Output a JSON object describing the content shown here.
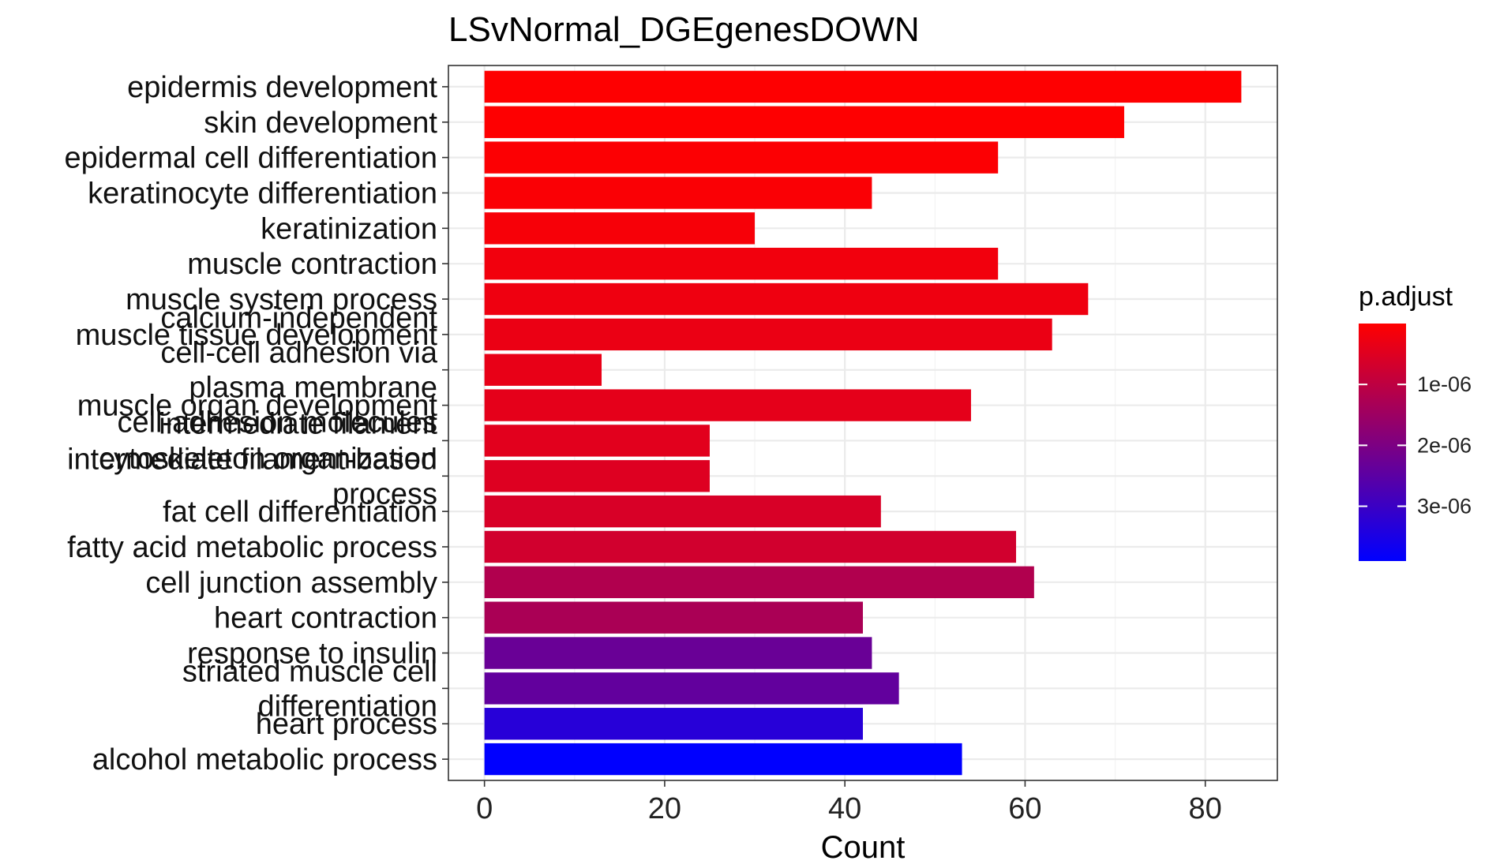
{
  "chart_data": {
    "type": "bar",
    "orientation": "horizontal",
    "title": "LSvNormal_DGEgenesDOWN",
    "xlabel": "Count",
    "ylabel": "",
    "xlim": [
      -4,
      88
    ],
    "xticks": [
      0,
      20,
      40,
      60,
      80
    ],
    "categories": [
      "epidermis development",
      "skin development",
      "epidermal cell differentiation",
      "keratinocyte differentiation",
      "keratinization",
      "muscle contraction",
      "muscle system process",
      "muscle tissue development",
      "calcium-independent cell-cell adhesion via plasma membrane cell-adhesion molecules",
      "muscle organ development",
      "intermediate filament cytoskeleton organization",
      "intermediate filament-based process",
      "fat cell differentiation",
      "fatty acid metabolic process",
      "cell junction assembly",
      "heart contraction",
      "response to insulin",
      "striated muscle cell differentiation",
      "heart process",
      "alcohol metabolic process"
    ],
    "label_lines": [
      [
        "epidermis development"
      ],
      [
        "skin development"
      ],
      [
        "epidermal cell differentiation"
      ],
      [
        "keratinocyte differentiation"
      ],
      [
        "keratinization"
      ],
      [
        "muscle contraction"
      ],
      [
        "muscle system process"
      ],
      [
        "muscle tissue development"
      ],
      [
        "calcium-independent",
        "cell-cell adhesion via",
        "plasma membrane",
        "cell-adhesion molecules"
      ],
      [
        "muscle organ development"
      ],
      [
        "intermediate filament",
        "cytoskeleton organization"
      ],
      [
        "intermediate filament-based",
        "process"
      ],
      [
        "fat cell differentiation"
      ],
      [
        "fatty acid metabolic process"
      ],
      [
        "cell junction assembly"
      ],
      [
        "heart contraction"
      ],
      [
        "response to insulin"
      ],
      [
        "striated muscle cell",
        "differentiation"
      ],
      [
        "heart process"
      ],
      [
        "alcohol metabolic process"
      ]
    ],
    "values": [
      84,
      71,
      57,
      43,
      30,
      57,
      67,
      63,
      13,
      54,
      25,
      25,
      44,
      59,
      61,
      42,
      43,
      46,
      42,
      53
    ],
    "p_adjust": [
      1e-08,
      2e-08,
      5e-08,
      8e-08,
      1.2e-07,
      2e-07,
      2.5e-07,
      3e-07,
      3.5e-07,
      4e-07,
      4.5e-07,
      5e-07,
      6e-07,
      7e-07,
      1.2e-06,
      1.3e-06,
      2.3e-06,
      2.4e-06,
      3.3e-06,
      3.9e-06
    ],
    "legend": {
      "title": "p.adjust",
      "position": "right",
      "ticks": [
        1e-06,
        2e-06,
        3e-06
      ],
      "tick_labels": [
        "1e-06",
        "2e-06",
        "3e-06"
      ],
      "range": [
        0,
        3.9e-06
      ],
      "low_color": "#ff0000",
      "high_color": "#0000ff"
    },
    "grid": true
  }
}
